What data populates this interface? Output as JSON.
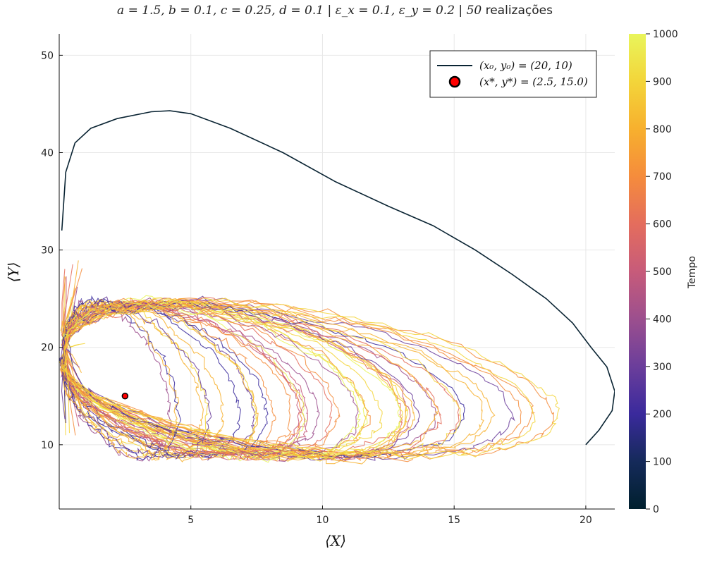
{
  "chart_data": {
    "type": "line",
    "title": {
      "params": "a = 1.5,  b = 0.1,  c = 0.25,  d = 0.1",
      "noise": "ε_x = 0.1,  ε_y = 0.2",
      "count": "50",
      "suffix": "realizações"
    },
    "xlabel": "⟨X⟩",
    "ylabel": "⟨Y⟩",
    "xlim": [
      0,
      21.1
    ],
    "ylim": [
      3.4,
      52.2
    ],
    "xticks": [
      5,
      10,
      15,
      20
    ],
    "yticks": [
      10,
      20,
      30,
      40,
      50
    ],
    "grid": true,
    "legend_position": "top-right",
    "legend": [
      {
        "label": "(x₀, y₀) = (20, 10)",
        "kind": "line",
        "color": "#0a2433"
      },
      {
        "label": "(x*, y*) = (2.5, 15.0)",
        "kind": "marker",
        "color": "#ff0000"
      }
    ],
    "colorbar": {
      "label": "Tempo",
      "range": [
        0,
        1000
      ],
      "ticks": [
        0,
        100,
        200,
        300,
        400,
        500,
        600,
        700,
        800,
        900,
        1000
      ],
      "colormap": "thermal",
      "stops": [
        "#00202e",
        "#152a5a",
        "#3a2a9c",
        "#6b3e9b",
        "#9c4f8e",
        "#c75b7a",
        "#e46d5d",
        "#f58c3c",
        "#f7b02e",
        "#f3d53a",
        "#e9f55b"
      ]
    },
    "series": [
      {
        "name": "(x₀, y₀) = (20, 10)",
        "color": "#0a2433",
        "x": [
          20,
          20.5,
          21.0,
          21.1,
          20.8,
          20.2,
          19.5,
          18.5,
          17.2,
          15.8,
          14.2,
          12.5,
          10.5,
          8.5,
          6.5,
          5.0,
          4.2,
          3.5,
          2.2,
          1.2,
          0.6,
          0.25,
          0.1
        ],
        "y": [
          10,
          11.5,
          13.5,
          15.5,
          18.0,
          20.0,
          22.5,
          25.0,
          27.5,
          30.0,
          32.5,
          34.5,
          37.0,
          40.0,
          42.5,
          44.0,
          44.3,
          44.2,
          43.5,
          42.5,
          41.0,
          38.0,
          32.0
        ]
      }
    ],
    "equilibrium": {
      "x": 2.5,
      "y": 15.0
    },
    "realizations": 50
  }
}
